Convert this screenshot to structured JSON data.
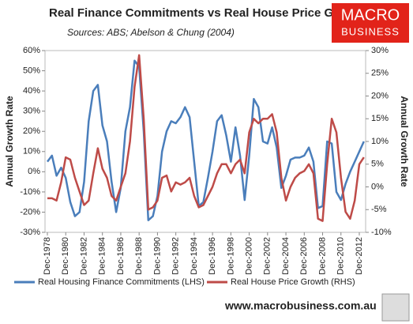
{
  "chart_data": {
    "type": "line",
    "title": "Real Finance Commitments vs Real House Price Growth",
    "subtitle": "Sources: ABS; Abelson & Chung (2004)",
    "ylabel": "Annual Growth Rate",
    "y2label": "Annual Growth Rate",
    "footer": "www.macrobusiness.com.au",
    "logo": [
      "MACRO",
      "BUSINESS"
    ],
    "categories": [
      "Dec-1978",
      null,
      null,
      null,
      "Dec-1980",
      null,
      null,
      null,
      "Dec-1982",
      null,
      null,
      null,
      "Dec-1984",
      null,
      null,
      null,
      "Dec-1986",
      null,
      null,
      null,
      "Dec-1988",
      null,
      null,
      null,
      "Dec-1990",
      null,
      null,
      null,
      "Dec-1992",
      null,
      null,
      null,
      "Dec-1994",
      null,
      null,
      null,
      "Dec-1996",
      null,
      null,
      null,
      "Dec-1998",
      null,
      null,
      null,
      "Dec-2000",
      null,
      null,
      null,
      "Dec-2002",
      null,
      null,
      null,
      "Dec-2004",
      null,
      null,
      null,
      "Dec-2006",
      null,
      null,
      null,
      "Dec-2008",
      null,
      null,
      null,
      "Dec-2010",
      null,
      null,
      null,
      "Dec-2012",
      null
    ],
    "series": [
      {
        "name": "Real Housing Finance Commitments (LHS)",
        "color": "#4a7ebb",
        "axis": "y",
        "values": [
          5,
          8,
          -2,
          2,
          -3,
          -15,
          -22,
          -20,
          -5,
          25,
          40,
          43,
          23,
          15,
          -5,
          -20,
          -8,
          20,
          32,
          55,
          52,
          20,
          -24,
          -22,
          -12,
          10,
          20,
          25,
          24,
          27,
          32,
          27,
          5,
          -17,
          -15,
          -3,
          10,
          25,
          28,
          18,
          5,
          22,
          8,
          -14,
          8,
          36,
          32,
          15,
          14,
          22,
          12,
          -8,
          -2,
          6,
          7,
          7,
          8,
          12,
          5,
          -18,
          -17,
          15,
          14,
          -10,
          -14,
          -6,
          0,
          5,
          10,
          15
        ]
      },
      {
        "name": "Real House Price Growth (RHS)",
        "color": "#be4b48",
        "axis": "y2",
        "values": [
          -2.5,
          -2.5,
          -3,
          1,
          6.5,
          6,
          2,
          -1,
          -4,
          -3,
          3,
          8.5,
          4,
          2,
          -2,
          -3,
          0,
          3,
          10,
          22,
          29,
          15,
          -5,
          -4.5,
          -3,
          2,
          2.5,
          -1,
          1,
          0.5,
          1,
          2,
          -2,
          -4.5,
          -4,
          -2,
          0,
          3,
          5,
          5,
          3,
          5,
          6,
          3,
          12,
          15,
          14,
          15,
          15,
          16,
          12,
          2,
          -3,
          0,
          2,
          3,
          3.5,
          5,
          3,
          -7,
          -7.5,
          5,
          15,
          12,
          2,
          -5.5,
          -7,
          -3,
          5,
          6.5
        ]
      }
    ],
    "ylim": [
      -30,
      60
    ],
    "yticks": [
      {
        "value": -30,
        "label": "-30%"
      },
      {
        "value": -20,
        "label": "-20%"
      },
      {
        "value": -10,
        "label": "-10%"
      },
      {
        "value": 0,
        "label": "0%"
      },
      {
        "value": 10,
        "label": "10%"
      },
      {
        "value": 20,
        "label": "20%"
      },
      {
        "value": 30,
        "label": "30%"
      },
      {
        "value": 40,
        "label": "40%"
      },
      {
        "value": 50,
        "label": "50%"
      },
      {
        "value": 60,
        "label": "60%"
      }
    ],
    "y2lim": [
      -10,
      30
    ],
    "y2ticks": [
      {
        "value": -10,
        "label": "-10%"
      },
      {
        "value": -5,
        "label": "-5%"
      },
      {
        "value": 0,
        "label": "0%"
      },
      {
        "value": 5,
        "label": "5%"
      },
      {
        "value": 10,
        "label": "10%"
      },
      {
        "value": 15,
        "label": "15%"
      },
      {
        "value": 20,
        "label": "20%"
      },
      {
        "value": 25,
        "label": "25%"
      },
      {
        "value": 30,
        "label": "30%"
      }
    ],
    "grid": false
  }
}
